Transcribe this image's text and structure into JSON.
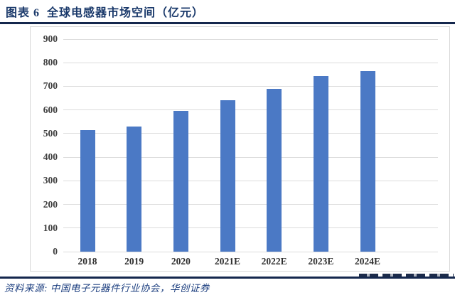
{
  "header": {
    "title": "图表 6  全球电感器市场空间（亿元）"
  },
  "footer": {
    "source_note": "资料来源: 中国电子元器件行业协会，华创证券"
  },
  "colors": {
    "accent_navy": "#1b3a6b",
    "rule_navy": "#14274d",
    "bar_blue": "#4b79c5",
    "gridline_gray": "#dcdcdc",
    "axis_text": "#3d3d3d"
  },
  "chart_data": {
    "type": "bar",
    "title": "全球电感器市场空间（亿元）",
    "categories": [
      "2018",
      "2019",
      "2020",
      "2021E",
      "2022E",
      "2023E",
      "2024E"
    ],
    "values": [
      515,
      530,
      596,
      641,
      690,
      744,
      765
    ],
    "xlabel": "",
    "ylabel": "",
    "ylim": [
      0,
      900
    ],
    "ytick_step": 100,
    "yticks": [
      0,
      100,
      200,
      300,
      400,
      500,
      600,
      700,
      800,
      900
    ],
    "grid": true,
    "legend": "none",
    "bar_color": "#4b79c5"
  }
}
